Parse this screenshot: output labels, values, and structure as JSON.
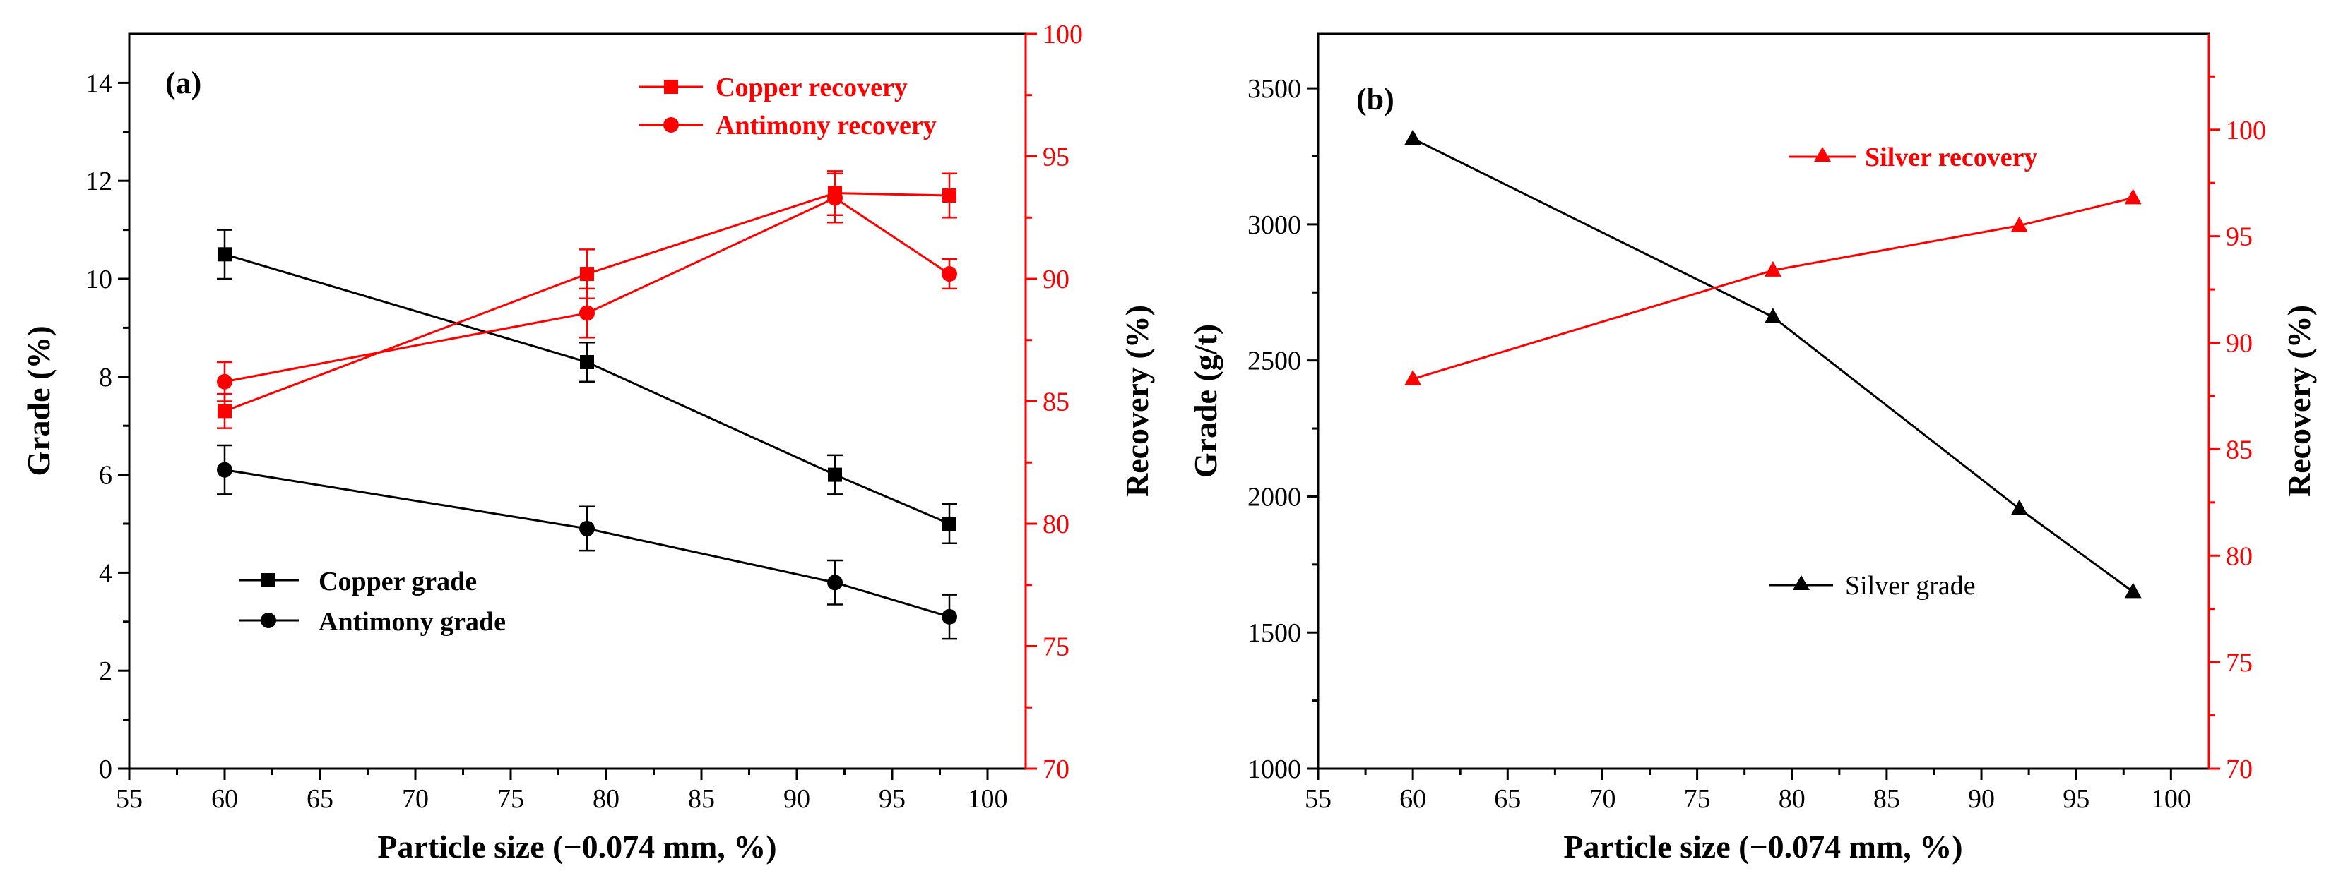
{
  "colors": {
    "black": "#000000",
    "red": "#ff0000"
  },
  "chart_data": [
    {
      "type": "line",
      "panel_label": "(a)",
      "xlabel": "Particle size (−0.074 mm, %)",
      "ylabel_left": "Grade (%)",
      "ylabel_right": "Recovery (%)",
      "xlim": [
        55,
        102
      ],
      "ylim_left": [
        0,
        15
      ],
      "ylim_right": [
        70,
        100
      ],
      "x_ticks": [
        "55",
        "60",
        "65",
        "70",
        "75",
        "80",
        "85",
        "90",
        "95",
        "100"
      ],
      "y_left_ticks": [
        "0",
        "2",
        "4",
        "6",
        "8",
        "10",
        "12",
        "14"
      ],
      "y_right_ticks": [
        "70",
        "75",
        "80",
        "85",
        "90",
        "95",
        "100"
      ],
      "x": [
        60,
        79,
        92,
        98
      ],
      "series": [
        {
          "name": "Copper grade",
          "axis": "left",
          "color": "#000000",
          "marker": "square",
          "values": [
            10.5,
            8.3,
            6.0,
            5.0
          ],
          "errors": [
            0.5,
            0.4,
            0.4,
            0.4
          ]
        },
        {
          "name": "Antimony grade",
          "axis": "left",
          "color": "#000000",
          "marker": "circle",
          "values": [
            6.1,
            4.9,
            3.8,
            3.1
          ],
          "errors": [
            0.5,
            0.45,
            0.45,
            0.45
          ]
        },
        {
          "name": "Copper recovery",
          "axis": "right",
          "color": "#ff0000",
          "marker": "square",
          "values": [
            84.6,
            90.2,
            93.5,
            93.4
          ],
          "errors": [
            0.7,
            1.0,
            0.9,
            0.9
          ]
        },
        {
          "name": "Antimony recovery",
          "axis": "right",
          "color": "#ff0000",
          "marker": "circle",
          "values": [
            85.8,
            88.6,
            93.3,
            90.2
          ],
          "errors": [
            0.8,
            1.0,
            1.0,
            0.6
          ]
        }
      ],
      "legend": {
        "left": [
          "Copper grade",
          "Antimony grade"
        ],
        "right": [
          "Copper recovery",
          "Antimony recovery"
        ]
      }
    },
    {
      "type": "line",
      "panel_label": "(b)",
      "xlabel": "Particle size (−0.074 mm, %)",
      "ylabel_left": "Grade (g/t)",
      "ylabel_right": "Recovery (%)",
      "xlim": [
        55,
        102
      ],
      "ylim_left": [
        1000,
        3700
      ],
      "ylim_right": [
        70,
        104.5
      ],
      "x_ticks": [
        "55",
        "60",
        "65",
        "70",
        "75",
        "80",
        "85",
        "90",
        "95",
        "100"
      ],
      "y_left_ticks": [
        "1000",
        "1500",
        "2000",
        "2500",
        "3000",
        "3500"
      ],
      "y_right_ticks": [
        "70",
        "75",
        "80",
        "85",
        "90",
        "95",
        "100"
      ],
      "x": [
        60,
        79,
        92,
        98
      ],
      "series": [
        {
          "name": "Silver grade",
          "axis": "left",
          "color": "#000000",
          "marker": "triangle",
          "values": [
            3315,
            2660,
            1955,
            1650
          ]
        },
        {
          "name": "Silver recovery",
          "axis": "right",
          "color": "#ff0000",
          "marker": "triangle",
          "values": [
            88.3,
            93.4,
            95.5,
            96.8
          ]
        }
      ],
      "legend": {
        "left": [
          "Silver grade"
        ],
        "right": [
          "Silver recovery"
        ]
      }
    }
  ]
}
